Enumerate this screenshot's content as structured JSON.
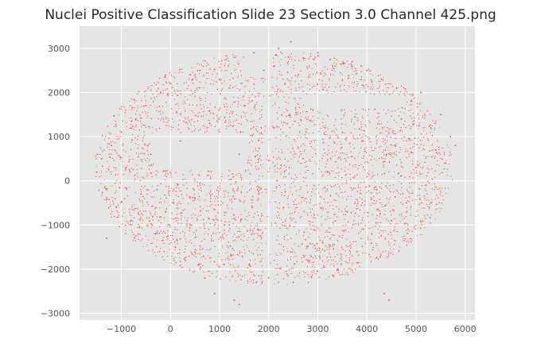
{
  "chart_data": {
    "type": "scatter",
    "title": "Nuclei Positive Classification Slide  23 Section 3.0 Channel 425.png",
    "xlabel": "",
    "ylabel": "",
    "xlim": [
      -1850,
      6200
    ],
    "ylim": [
      -3150,
      3500
    ],
    "x_ticks": [
      -1000,
      0,
      1000,
      2000,
      3000,
      4000,
      5000,
      6000
    ],
    "x_tick_labels": [
      "−1000",
      "0",
      "1000",
      "2000",
      "3000",
      "4000",
      "5000",
      "6000"
    ],
    "y_ticks": [
      -3000,
      -2000,
      -1000,
      0,
      1000,
      2000,
      3000
    ],
    "y_tick_labels": [
      "−3000",
      "−2000",
      "−1000",
      "0",
      "1000",
      "2000",
      "3000"
    ],
    "grid": true,
    "style": "ggplot",
    "colors": {
      "background": "#e5e5e5",
      "grid": "#ffffff",
      "marker": "#e24a33"
    },
    "series": [
      {
        "marker": "point",
        "points": [
          [
            -1500,
            200
          ],
          [
            -1400,
            500
          ],
          [
            -1300,
            -200
          ],
          [
            -1200,
            800
          ],
          [
            -1100,
            -600
          ],
          [
            -1000,
            1100
          ],
          [
            -900,
            300
          ],
          [
            -800,
            -900
          ],
          [
            -700,
            1400
          ],
          [
            -600,
            -300
          ],
          [
            -500,
            1700
          ],
          [
            -400,
            600
          ],
          [
            -300,
            -1200
          ],
          [
            -200,
            2000
          ],
          [
            -100,
            -700
          ],
          [
            0,
            2200
          ],
          [
            100,
            -1500
          ],
          [
            200,
            900
          ],
          [
            300,
            -1800
          ],
          [
            400,
            2400
          ],
          [
            500,
            -400
          ],
          [
            600,
            2500
          ],
          [
            700,
            -2200
          ],
          [
            800,
            1300
          ],
          [
            900,
            -2550
          ],
          [
            1000,
            2300
          ],
          [
            1100,
            -1000
          ],
          [
            1200,
            2100
          ],
          [
            1300,
            -2700
          ],
          [
            1400,
            600
          ],
          [
            1500,
            1700
          ],
          [
            1600,
            -1900
          ],
          [
            1700,
            2900
          ],
          [
            1800,
            -300
          ],
          [
            1900,
            2500
          ],
          [
            2000,
            -2200
          ],
          [
            2100,
            1200
          ],
          [
            2200,
            3000
          ],
          [
            2300,
            -600
          ],
          [
            2400,
            2800
          ],
          [
            2500,
            -2300
          ],
          [
            2600,
            2400
          ],
          [
            2700,
            500
          ],
          [
            2800,
            -1800
          ],
          [
            2900,
            1600
          ],
          [
            3000,
            2900
          ],
          [
            3100,
            -1400
          ],
          [
            3200,
            200
          ],
          [
            3300,
            2600
          ],
          [
            3400,
            -2000
          ],
          [
            3500,
            1100
          ],
          [
            3600,
            -700
          ],
          [
            3700,
            2700
          ],
          [
            3800,
            -1600
          ],
          [
            3900,
            900
          ],
          [
            4000,
            2500
          ],
          [
            4100,
            -1200
          ],
          [
            4200,
            -200
          ],
          [
            4300,
            2300
          ],
          [
            4400,
            600
          ],
          [
            4500,
            -900
          ],
          [
            4600,
            2100
          ],
          [
            4700,
            1400
          ],
          [
            4800,
            -500
          ],
          [
            4900,
            1800
          ],
          [
            5000,
            300
          ],
          [
            5100,
            2000
          ],
          [
            5200,
            -100
          ],
          [
            5300,
            1200
          ],
          [
            5400,
            700
          ],
          [
            5500,
            1500
          ],
          [
            5600,
            400
          ],
          [
            5700,
            1000
          ],
          [
            5800,
            800
          ],
          [
            4350,
            -2550
          ],
          [
            4450,
            -2700
          ],
          [
            1400,
            -2800
          ],
          [
            2450,
            3150
          ],
          [
            2150,
            2850
          ],
          [
            -1300,
            -1300
          ]
        ]
      }
    ]
  }
}
